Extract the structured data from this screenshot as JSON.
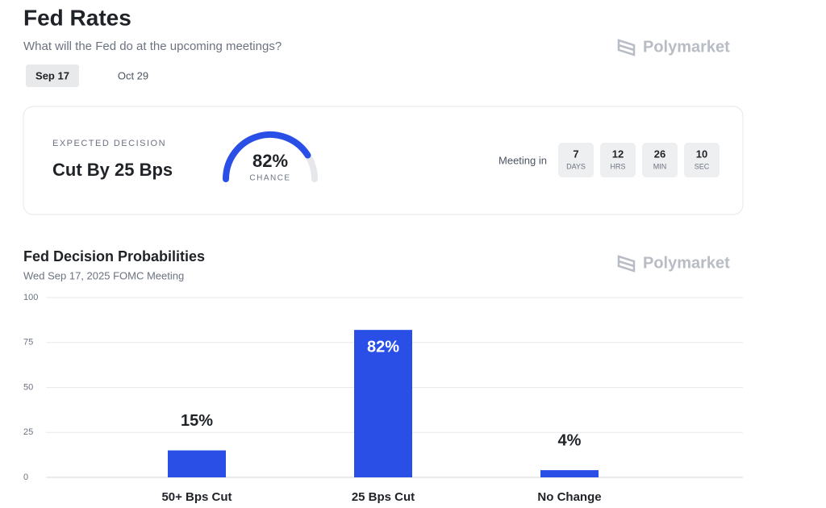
{
  "header": {
    "title": "Fed Rates",
    "subtitle": "What will the Fed do at the upcoming meetings?",
    "brand": "Polymarket"
  },
  "tabs": [
    {
      "label": "Sep 17",
      "selected": true
    },
    {
      "label": "Oct 29",
      "selected": false
    }
  ],
  "decision": {
    "caption": "EXPECTED DECISION",
    "outcome": "Cut By 25 Bps",
    "chance": 82,
    "chance_label": "82%",
    "chance_caption": "CHANCE",
    "meeting_label": "Meeting in",
    "countdown": [
      {
        "value": 7,
        "unit": "DAYS"
      },
      {
        "value": 12,
        "unit": "HRS"
      },
      {
        "value": 26,
        "unit": "MIN"
      },
      {
        "value": 10,
        "unit": "SEC"
      }
    ]
  },
  "chart_data": {
    "type": "bar",
    "title": "Fed Decision Probabilities",
    "subtitle": "Wed Sep 17, 2025 FOMC Meeting",
    "brand": "Polymarket",
    "categories": [
      "50+ Bps Cut",
      "25 Bps Cut",
      "No Change"
    ],
    "values": [
      15,
      82,
      4
    ],
    "value_labels": [
      "15%",
      "82%",
      "4%"
    ],
    "color": "#2a4fe6",
    "ylim": [
      0,
      100
    ],
    "yticks": [
      0,
      25,
      50,
      75,
      100
    ],
    "grid": true
  }
}
